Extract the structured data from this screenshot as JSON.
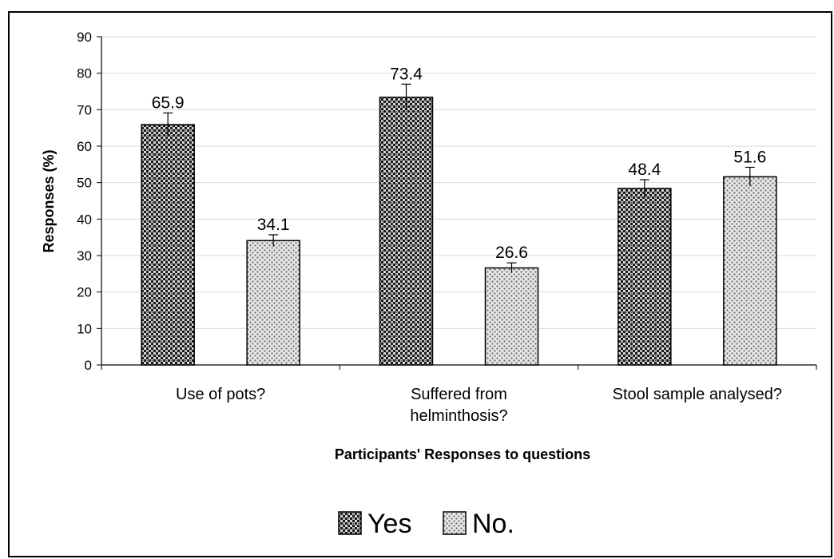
{
  "chart_data": {
    "type": "bar",
    "title": "",
    "xlabel": "Participants' Responses to questions",
    "ylabel": "Responses (%)",
    "ylim": [
      0,
      90
    ],
    "yticks": [
      0,
      10,
      20,
      30,
      40,
      50,
      60,
      70,
      80,
      90
    ],
    "grid": true,
    "legend_position": "bottom",
    "categories": [
      [
        "Use of pots?"
      ],
      [
        "Suffered from",
        "helminthosis?"
      ],
      [
        "Stool sample analysed?"
      ]
    ],
    "bars": [
      {
        "category_index": 0,
        "series": "Yes",
        "value": 65.9,
        "label": "65.9",
        "error": 3.2
      },
      {
        "category_index": 0,
        "series": "No.",
        "value": 34.1,
        "label": "34.1",
        "error": 1.6
      },
      {
        "category_index": 1,
        "series": "Yes",
        "value": 73.4,
        "label": "73.4",
        "error": 3.6
      },
      {
        "category_index": 1,
        "series": "No.",
        "value": 26.6,
        "label": "26.6",
        "error": 1.4
      },
      {
        "category_index": 2,
        "series": "Yes",
        "value": 48.4,
        "label": "48.4",
        "error": 2.4
      },
      {
        "category_index": 2,
        "series": "No.",
        "value": 51.6,
        "label": "51.6",
        "error": 2.6
      }
    ],
    "series": [
      {
        "name": "Yes",
        "pattern": "dark-checker",
        "color": "#1a1a1a"
      },
      {
        "name": "No.",
        "pattern": "light-dots",
        "color": "#7a7a7a"
      }
    ]
  }
}
